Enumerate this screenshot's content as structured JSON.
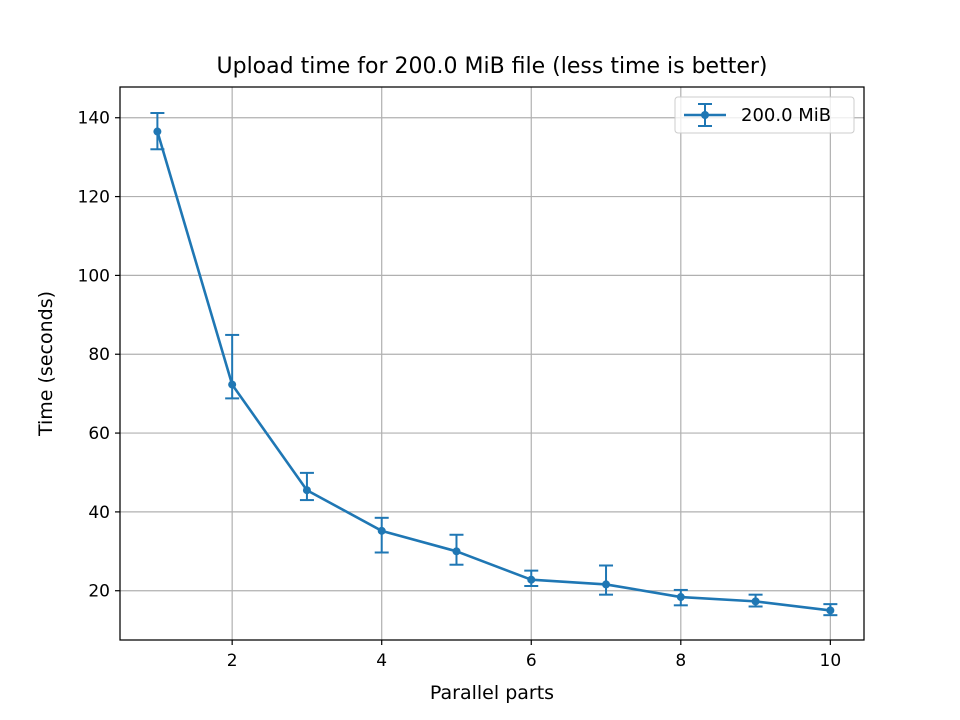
{
  "chart_data": {
    "type": "line",
    "title": "Upload time for 200.0 MiB file (less time is better)",
    "xlabel": "Parallel parts",
    "ylabel": "Time (seconds)",
    "xlim": [
      0.5,
      10.45
    ],
    "ylim": [
      7.5,
      147.8
    ],
    "xticks": [
      2,
      4,
      6,
      8,
      10
    ],
    "yticks": [
      20,
      40,
      60,
      80,
      100,
      120,
      140
    ],
    "grid": true,
    "legend_position": "top-right",
    "series": [
      {
        "name": "200.0 MiB",
        "color": "#1f77b4",
        "marker": "circle",
        "error_bars": true,
        "x": [
          1,
          2,
          3,
          4,
          5,
          6,
          7,
          8,
          9,
          10
        ],
        "y": [
          136.5,
          72.3,
          45.5,
          35.2,
          30.0,
          22.8,
          21.6,
          18.4,
          17.3,
          15.0
        ],
        "yerr_low": [
          132.0,
          68.8,
          43.0,
          29.7,
          26.6,
          21.2,
          19.0,
          16.3,
          16.0,
          13.8
        ],
        "yerr_high": [
          141.2,
          84.9,
          49.9,
          38.5,
          34.2,
          25.1,
          26.4,
          20.2,
          19.0,
          16.6
        ]
      }
    ]
  }
}
